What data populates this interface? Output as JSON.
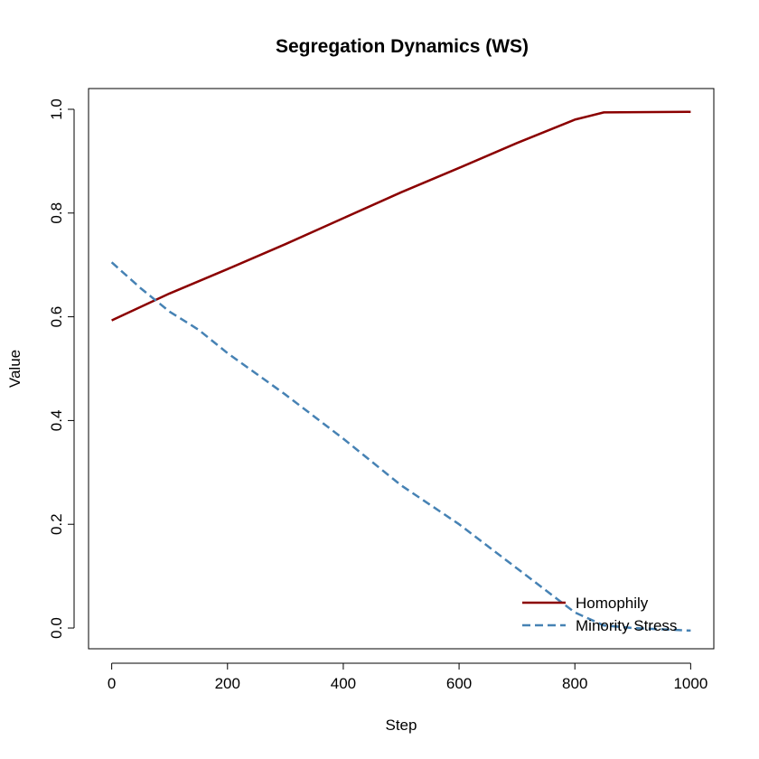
{
  "chart_data": {
    "type": "line",
    "title": "Segregation Dynamics (WS)",
    "xlabel": "Step",
    "ylabel": "Value",
    "xlim": [
      -40,
      1040
    ],
    "ylim": [
      -0.04,
      1.04
    ],
    "x_ticks": [
      0,
      200,
      400,
      600,
      800,
      1000
    ],
    "y_ticks": [
      0.0,
      0.2,
      0.4,
      0.6,
      0.8,
      1.0
    ],
    "x_tick_labels": [
      "0",
      "200",
      "400",
      "600",
      "800",
      "1000"
    ],
    "y_tick_labels": [
      "0.0",
      "0.2",
      "0.4",
      "0.6",
      "0.8",
      "1.0"
    ],
    "grid": false,
    "legend_position": "bottom-right",
    "series": [
      {
        "name": "Homophily",
        "color": "#8B0000",
        "line_style": "solid",
        "x": [
          0,
          100,
          200,
          300,
          400,
          500,
          600,
          700,
          800,
          850,
          1000
        ],
        "y": [
          0.593,
          0.645,
          0.692,
          0.74,
          0.79,
          0.84,
          0.887,
          0.935,
          0.98,
          0.994,
          0.995
        ]
      },
      {
        "name": "Minority Stress",
        "color": "#4682B4",
        "line_style": "dashed",
        "x": [
          0,
          50,
          100,
          150,
          200,
          300,
          400,
          500,
          600,
          700,
          800,
          850,
          900,
          1000
        ],
        "y": [
          0.705,
          0.655,
          0.61,
          0.575,
          0.53,
          0.45,
          0.365,
          0.275,
          0.2,
          0.115,
          0.03,
          0.005,
          0.0,
          -0.005
        ]
      }
    ]
  }
}
